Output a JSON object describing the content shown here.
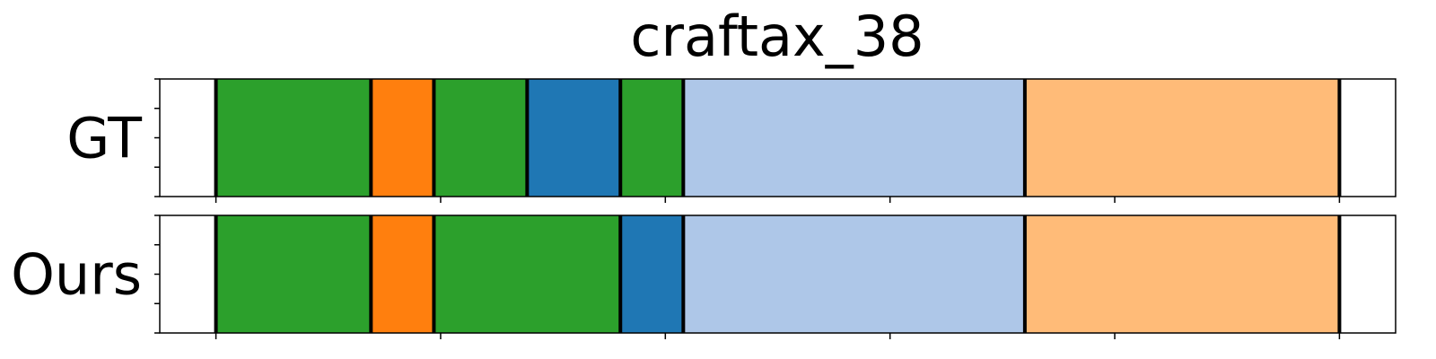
{
  "chart_data": {
    "type": "segment_timeline",
    "title": "craftax_38",
    "xlim": [
      0,
      1100
    ],
    "xticks": [
      50,
      250,
      450,
      650,
      850,
      1050
    ],
    "rows": [
      {
        "label": "GT",
        "segments": [
          {
            "start": 50,
            "end": 188,
            "color": "#2ca02c"
          },
          {
            "start": 188,
            "end": 244,
            "color": "#ff7f0e"
          },
          {
            "start": 244,
            "end": 327,
            "color": "#2ca02c"
          },
          {
            "start": 327,
            "end": 410,
            "color": "#1f77b4"
          },
          {
            "start": 410,
            "end": 466,
            "color": "#2ca02c"
          },
          {
            "start": 466,
            "end": 770,
            "color": "#aec7e8"
          },
          {
            "start": 770,
            "end": 1050,
            "color": "#ffbb78"
          }
        ]
      },
      {
        "label": "Ours",
        "segments": [
          {
            "start": 50,
            "end": 188,
            "color": "#2ca02c"
          },
          {
            "start": 188,
            "end": 244,
            "color": "#ff7f0e"
          },
          {
            "start": 244,
            "end": 410,
            "color": "#2ca02c"
          },
          {
            "start": 410,
            "end": 466,
            "color": "#1f77b4"
          },
          {
            "start": 466,
            "end": 770,
            "color": "#aec7e8"
          },
          {
            "start": 770,
            "end": 1050,
            "color": "#ffbb78"
          }
        ]
      }
    ]
  }
}
